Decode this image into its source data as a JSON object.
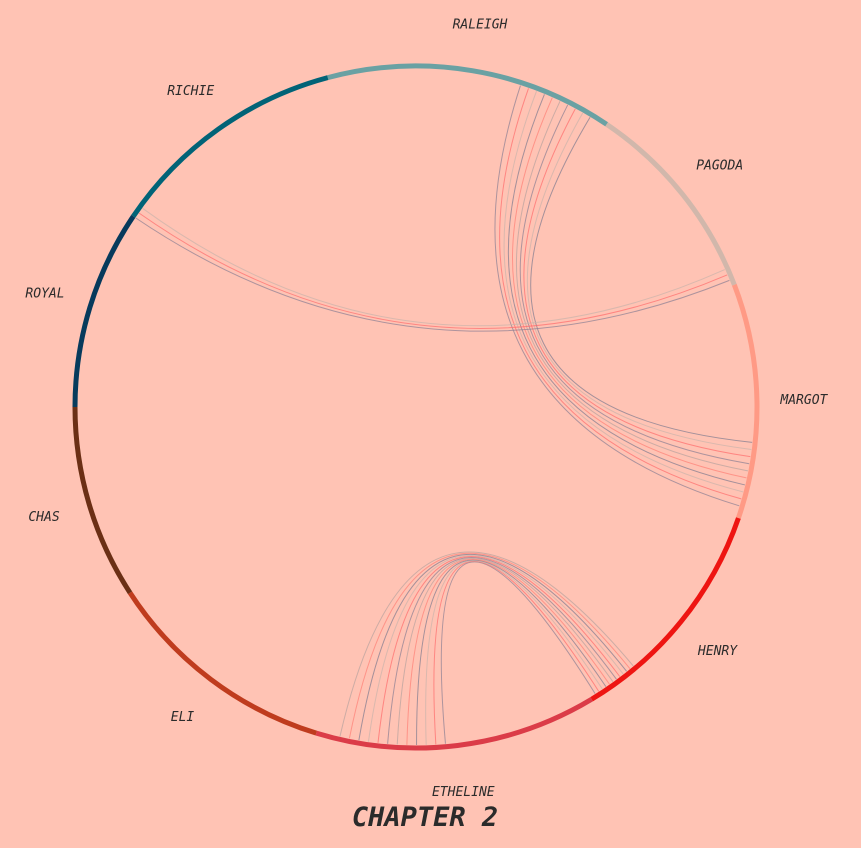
{
  "title": "CHAPTER 2",
  "characters": [
    {
      "id": "raleigh",
      "name": "RALEIGH",
      "color": "#6aa1a3",
      "start": -15,
      "end": 34
    },
    {
      "id": "pagoda",
      "name": "PAGODA",
      "color": "#d1b7ab",
      "start": 34,
      "end": 69
    },
    {
      "id": "margot",
      "name": "MARGOT",
      "color": "#ff9a85",
      "start": 69,
      "end": 109
    },
    {
      "id": "henry",
      "name": "HENRY",
      "color": "#ee1512",
      "start": 109,
      "end": 149
    },
    {
      "id": "etheline",
      "name": "ETHELINE",
      "color": "#db3c48",
      "start": 149,
      "end": 197
    },
    {
      "id": "eli",
      "name": "ELI",
      "color": "#bf3c1e",
      "start": 197,
      "end": 237
    },
    {
      "id": "chas",
      "name": "CHAS",
      "color": "#6b2f15",
      "start": 237,
      "end": 270
    },
    {
      "id": "royal",
      "name": "ROYAL",
      "color": "#073a5c",
      "start": 270,
      "end": 304
    },
    {
      "id": "richie",
      "name": "RICHIE",
      "color": "#016377",
      "start": 304,
      "end": 345
    }
  ],
  "links": [
    {
      "source": "raleigh",
      "target": "margot",
      "count": 10,
      "a": [
        18,
        31
      ],
      "b": [
        96,
        107
      ]
    },
    {
      "source": "royal",
      "target": "pagoda",
      "count": 3,
      "a": [
        304,
        306
      ],
      "b": [
        66,
        68
      ]
    },
    {
      "source": "etheline",
      "target": "henry",
      "count": 12,
      "a": [
        175,
        193
      ],
      "b": [
        140,
        148
      ]
    }
  ]
}
